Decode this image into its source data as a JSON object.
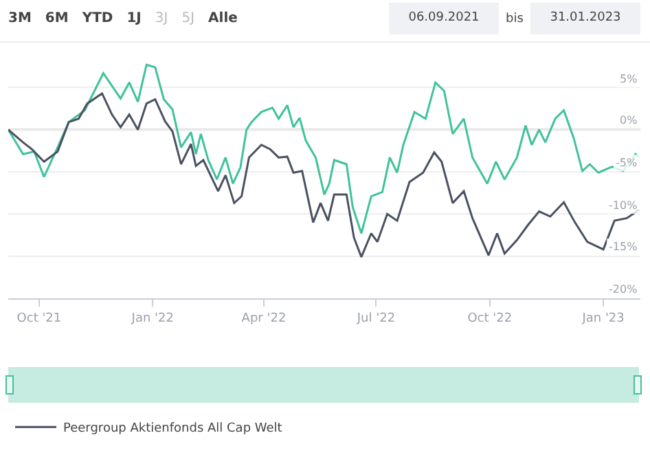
{
  "chart_data": {
    "type": "line",
    "annotations": [
      "3M",
      "6M",
      "YTD",
      "1J",
      "3J",
      "5J",
      "Alle",
      "06.09.2021",
      "bis",
      "31.01.2023"
    ],
    "xlim": [
      "2021-09-06",
      "2023-01-31"
    ],
    "xticks": [
      {
        "value": "2021-10-01",
        "label": "Oct '21"
      },
      {
        "value": "2022-01-01",
        "label": "Jan '22"
      },
      {
        "value": "2022-04-01",
        "label": "Apr '22"
      },
      {
        "value": "2022-07-01",
        "label": "Jul '22"
      },
      {
        "value": "2022-10-01",
        "label": "Oct '22"
      },
      {
        "value": "2023-01-01",
        "label": "Jan '23"
      }
    ],
    "ylim": [
      -20,
      10
    ],
    "yticks": [
      {
        "value": -20,
        "label": "-20%"
      },
      {
        "value": -15,
        "label": "-15%"
      },
      {
        "value": -10,
        "label": "-10%"
      },
      {
        "value": -5,
        "label": "-5%"
      },
      {
        "value": 0,
        "label": "0%"
      },
      {
        "value": 5,
        "label": "5%"
      }
    ],
    "grid": "y",
    "legend": "bottom",
    "marker": "none",
    "line_style": "solid",
    "ref_lines": [
      {
        "axis": "y",
        "value": 0,
        "color": "#cccccc"
      }
    ],
    "series": [
      {
        "color": "#40c29c",
        "x": [
          "2021-09-06",
          "2021-09-18",
          "2021-09-27",
          "2021-10-05",
          "2021-10-16",
          "2021-10-25",
          "2021-11-07",
          "2021-11-22",
          "2021-12-06",
          "2021-12-13",
          "2021-12-20",
          "2021-12-27",
          "2022-01-03",
          "2022-01-10",
          "2022-01-17",
          "2022-01-24",
          "2022-02-01",
          "2022-02-05",
          "2022-02-09",
          "2022-02-15",
          "2022-02-22",
          "2022-03-01",
          "2022-03-07",
          "2022-03-13",
          "2022-03-18",
          "2022-03-22",
          "2022-03-30",
          "2022-04-08",
          "2022-04-13",
          "2022-04-20",
          "2022-04-25",
          "2022-04-30",
          "2022-05-05",
          "2022-05-13",
          "2022-05-20",
          "2022-05-24",
          "2022-05-28",
          "2022-06-07",
          "2022-06-12",
          "2022-06-19",
          "2022-06-27",
          "2022-07-06",
          "2022-07-12",
          "2022-07-18",
          "2022-07-23",
          "2022-08-01",
          "2022-08-10",
          "2022-08-18",
          "2022-08-25",
          "2022-09-01",
          "2022-09-10",
          "2022-09-17",
          "2022-09-29",
          "2022-10-06",
          "2022-10-13",
          "2022-10-23",
          "2022-10-30",
          "2022-11-04",
          "2022-11-10",
          "2022-11-15",
          "2022-11-23",
          "2022-11-30",
          "2022-12-08",
          "2022-12-15",
          "2022-12-21",
          "2022-12-28",
          "2023-01-08",
          "2023-01-17",
          "2023-01-27",
          "2023-01-30"
        ],
        "values": [
          0,
          -2.9,
          -2.6,
          -5.6,
          -2.1,
          0.9,
          2.3,
          6.7,
          3.7,
          5.6,
          3.3,
          7.7,
          7.4,
          3.6,
          2.4,
          -2.1,
          -0.3,
          -2.9,
          -0.5,
          -3.6,
          -5.9,
          -3.3,
          -6.4,
          -4.5,
          0,
          0.9,
          2.1,
          2.6,
          1.3,
          2.9,
          0.3,
          1.4,
          -1.3,
          -3.3,
          -7.7,
          -6.4,
          -3.6,
          -4.1,
          -9.2,
          -12.3,
          -7.9,
          -7.4,
          -3.3,
          -5.1,
          -1.8,
          2.1,
          1.3,
          5.6,
          4.6,
          -0.5,
          1.3,
          -3.3,
          -6.4,
          -3.8,
          -5.9,
          -3.3,
          0.5,
          -1.8,
          0,
          -1.5,
          1.3,
          2.3,
          -1.0,
          -4.9,
          -4.1,
          -5.1,
          -4.4,
          -4.9,
          -2.9,
          -3.3
        ]
      },
      {
        "name": "Peergroup Aktienfonds All Cap Welt",
        "color": "#4a5162",
        "x": [
          "2021-09-06",
          "2021-09-18",
          "2021-09-25",
          "2021-10-05",
          "2021-10-16",
          "2021-10-25",
          "2021-11-02",
          "2021-11-09",
          "2021-11-21",
          "2021-11-29",
          "2021-12-06",
          "2021-12-13",
          "2021-12-20",
          "2021-12-27",
          "2022-01-03",
          "2022-01-11",
          "2022-01-17",
          "2022-01-24",
          "2022-02-01",
          "2022-02-05",
          "2022-02-11",
          "2022-02-23",
          "2022-03-01",
          "2022-03-08",
          "2022-03-14",
          "2022-03-20",
          "2022-03-30",
          "2022-04-06",
          "2022-04-13",
          "2022-04-20",
          "2022-04-25",
          "2022-05-02",
          "2022-05-11",
          "2022-05-17",
          "2022-05-23",
          "2022-05-28",
          "2022-06-07",
          "2022-06-13",
          "2022-06-19",
          "2022-06-27",
          "2022-07-02",
          "2022-07-10",
          "2022-07-18",
          "2022-07-28",
          "2022-08-08",
          "2022-08-17",
          "2022-08-23",
          "2022-09-01",
          "2022-09-10",
          "2022-09-17",
          "2022-09-30",
          "2022-10-07",
          "2022-10-13",
          "2022-10-23",
          "2022-11-01",
          "2022-11-10",
          "2022-11-19",
          "2022-11-30",
          "2022-12-09",
          "2022-12-19",
          "2023-01-01",
          "2023-01-10",
          "2023-01-20",
          "2023-01-30"
        ],
        "values": [
          0,
          -1.5,
          -2.3,
          -3.8,
          -2.6,
          0.9,
          1.3,
          3.1,
          4.3,
          1.8,
          0.3,
          1.8,
          0,
          3.1,
          3.6,
          1.0,
          -0.2,
          -4.1,
          -1.7,
          -4.3,
          -3.6,
          -7.3,
          -5.4,
          -8.7,
          -7.9,
          -3.3,
          -1.8,
          -2.3,
          -3.3,
          -3.2,
          -5.1,
          -4.9,
          -11.0,
          -8.7,
          -10.8,
          -7.7,
          -7.7,
          -12.8,
          -15.1,
          -12.3,
          -13.3,
          -10.0,
          -10.8,
          -6.2,
          -5.1,
          -2.7,
          -3.8,
          -8.7,
          -7.3,
          -10.5,
          -14.9,
          -12.3,
          -14.7,
          -13.1,
          -11.3,
          -9.7,
          -10.3,
          -8.6,
          -11.0,
          -13.3,
          -14.2,
          -10.8,
          -10.5,
          -9.5
        ]
      }
    ]
  }
}
